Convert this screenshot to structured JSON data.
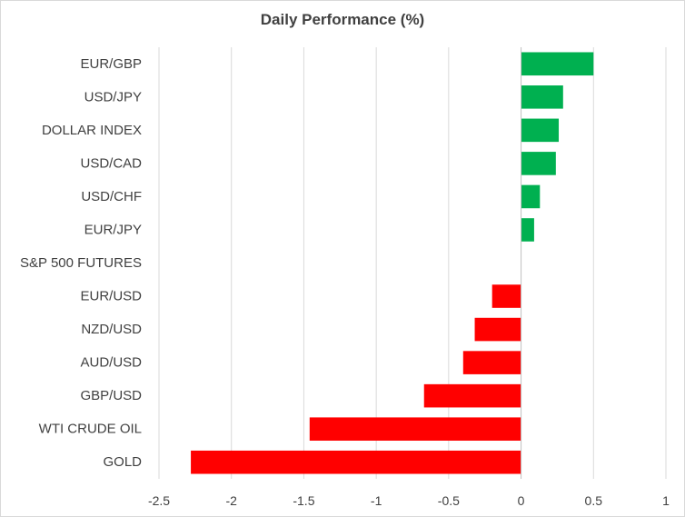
{
  "chart_data": {
    "type": "bar",
    "orientation": "horizontal",
    "title": "Daily Performance (%)",
    "xlabel": "",
    "ylabel": "",
    "xlim": [
      -2.5,
      1
    ],
    "xticks": [
      -2.5,
      -2,
      -1.5,
      -1,
      -0.5,
      0,
      0.5,
      1
    ],
    "xtick_labels": [
      "-2.5",
      "-2",
      "-1.5",
      "-1",
      "-0.5",
      "0",
      "0.5",
      "1"
    ],
    "grid": "vertical",
    "legend": "none",
    "categories": [
      "EUR/GBP",
      "USD/JPY",
      "DOLLAR INDEX",
      "USD/CAD",
      "USD/CHF",
      "EUR/JPY",
      "S&P 500 FUTURES",
      "EUR/USD",
      "NZD/USD",
      "AUD/USD",
      "GBP/USD",
      "WTI CRUDE OIL",
      "GOLD"
    ],
    "values": [
      0.5,
      0.29,
      0.26,
      0.24,
      0.13,
      0.09,
      0.0,
      -0.2,
      -0.32,
      -0.4,
      -0.67,
      -1.46,
      -2.28
    ],
    "colors": {
      "positive": "#00b050",
      "negative": "#ff0000",
      "grid": "#d9d9d9",
      "axis": "#bfbfbf",
      "text": "#404040"
    }
  }
}
